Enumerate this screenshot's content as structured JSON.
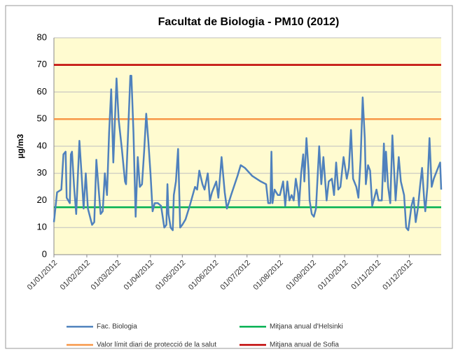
{
  "chart_data": {
    "type": "line",
    "title": "Facultat de Biologia - PM10 (2012)",
    "y_label": "µg/m3",
    "xlim": [
      "01/01/2012",
      "31/12/2012"
    ],
    "xticks": [
      "01/01/2012",
      "01/02/2012",
      "01/03/2012",
      "01/04/2012",
      "01/05/2012",
      "01/06/2012",
      "01/07/2012",
      "01/08/2012",
      "01/09/2012",
      "01/10/2012",
      "01/11/2012",
      "01/12/2012"
    ],
    "ylim": [
      0,
      80
    ],
    "yticks": [
      0,
      10,
      20,
      30,
      40,
      50,
      60,
      70,
      80
    ],
    "grid": true,
    "x": [
      "01/01/2012",
      "04/01/2012",
      "08/01/2012",
      "10/01/2012",
      "12/01/2012",
      "13/01/2012",
      "16/01/2012",
      "17/01/2012",
      "18/01/2012",
      "20/01/2012",
      "22/01/2012",
      "25/01/2012",
      "27/01/2012",
      "29/01/2012",
      "31/01/2012",
      "02/02/2012",
      "06/02/2012",
      "08/02/2012",
      "10/02/2012",
      "12/02/2012",
      "14/02/2012",
      "16/02/2012",
      "18/02/2012",
      "20/02/2012",
      "22/02/2012",
      "24/02/2012",
      "26/02/2012",
      "29/02/2012",
      "02/03/2012",
      "05/03/2012",
      "08/03/2012",
      "09/03/2012",
      "12/03/2012",
      "13/03/2012",
      "14/03/2012",
      "16/03/2012",
      "18/03/2012",
      "20/03/2012",
      "22/03/2012",
      "24/03/2012",
      "26/03/2012",
      "28/03/2012",
      "30/03/2012",
      "01/04/2012",
      "03/04/2012",
      "05/04/2012",
      "08/04/2012",
      "11/04/2012",
      "14/04/2012",
      "16/04/2012",
      "17/04/2012",
      "18/04/2012",
      "20/04/2012",
      "22/04/2012",
      "23/04/2012",
      "25/04/2012",
      "27/04/2012",
      "29/04/2012",
      "01/05/2012",
      "04/05/2012",
      "08/05/2012",
      "13/05/2012",
      "15/05/2012",
      "17/05/2012",
      "20/05/2012",
      "22/05/2012",
      "25/05/2012",
      "27/05/2012",
      "29/05/2012",
      "02/06/2012",
      "04/06/2012",
      "07/06/2012",
      "10/06/2012",
      "12/06/2012",
      "16/06/2012",
      "22/06/2012",
      "25/06/2012",
      "29/06/2012",
      "06/07/2012",
      "14/07/2012",
      "19/07/2012",
      "21/07/2012",
      "23/07/2012",
      "24/07/2012",
      "25/07/2012",
      "27/07/2012",
      "30/07/2012",
      "01/08/2012",
      "04/08/2012",
      "06/08/2012",
      "08/08/2012",
      "10/08/2012",
      "12/08/2012",
      "14/08/2012",
      "16/08/2012",
      "18/08/2012",
      "19/08/2012",
      "21/08/2012",
      "23/08/2012",
      "24/08/2012",
      "26/08/2012",
      "28/08/2012",
      "29/08/2012",
      "31/08/2012",
      "02/09/2012",
      "04/09/2012",
      "07/09/2012",
      "09/09/2012",
      "11/09/2012",
      "14/09/2012",
      "16/09/2012",
      "19/09/2012",
      "21/09/2012",
      "23/09/2012",
      "25/09/2012",
      "27/09/2012",
      "30/09/2012",
      "03/10/2012",
      "05/10/2012",
      "07/10/2012",
      "09/10/2012",
      "12/10/2012",
      "14/10/2012",
      "16/10/2012",
      "18/10/2012",
      "20/10/2012",
      "21/10/2012",
      "23/10/2012",
      "25/10/2012",
      "27/10/2012",
      "29/10/2012",
      "31/10/2012",
      "02/11/2012",
      "05/11/2012",
      "07/11/2012",
      "08/11/2012",
      "09/11/2012",
      "11/11/2012",
      "13/11/2012",
      "15/11/2012",
      "18/11/2012",
      "21/11/2012",
      "23/11/2012",
      "26/11/2012",
      "28/11/2012",
      "30/11/2012",
      "03/12/2012",
      "05/12/2012",
      "07/12/2012",
      "09/12/2012",
      "11/12/2012",
      "13/12/2012",
      "15/12/2012",
      "16/12/2012",
      "18/12/2012",
      "20/12/2012",
      "22/12/2012",
      "24/12/2012",
      "27/12/2012",
      "30/12/2012",
      "31/12/2012"
    ],
    "series": [
      {
        "name": "Fac. Biologia",
        "color": "#4f81bd",
        "values": [
          12,
          23,
          24,
          37,
          38,
          21,
          19,
          37,
          38,
          25,
          15,
          42,
          30,
          17,
          30,
          17,
          11,
          12,
          35,
          25,
          15,
          16,
          30,
          22,
          45,
          61,
          34,
          65,
          50,
          39,
          27,
          26,
          56,
          66,
          66,
          45,
          14,
          36,
          25,
          26,
          38,
          52,
          42,
          30,
          16,
          19,
          19,
          18,
          10,
          11,
          26,
          15,
          10,
          9,
          22,
          27,
          39,
          10,
          11,
          13,
          18,
          25,
          24,
          31,
          26,
          24,
          30,
          20,
          23,
          27,
          21,
          36,
          23,
          17,
          22,
          29,
          33,
          32,
          29,
          27,
          26,
          19,
          19,
          38,
          19,
          24,
          22,
          22,
          27,
          18,
          27,
          20,
          22,
          20,
          28,
          23,
          18,
          30,
          37,
          27,
          43,
          31,
          20,
          15,
          14,
          17,
          40,
          26,
          36,
          20,
          27,
          28,
          22,
          34,
          24,
          25,
          36,
          28,
          32,
          46,
          28,
          25,
          21,
          35,
          58,
          43,
          26,
          33,
          31,
          18,
          21,
          24,
          20,
          20,
          41,
          27,
          38,
          25,
          19,
          44,
          20,
          36,
          27,
          22,
          10,
          9,
          18,
          21,
          12,
          17,
          25,
          32,
          20,
          16,
          25,
          43,
          25,
          28,
          31,
          34,
          24
        ]
      }
    ],
    "reference_lines": [
      {
        "name": "Mitjana anual d'Helsinki",
        "color": "#00b050",
        "value": 17.5
      },
      {
        "name": "Valor límit diari de protecció de la salut",
        "color": "#f79646",
        "value": 50
      },
      {
        "name": "Mitjana anual de Sofia",
        "color": "#c00000",
        "value": 70
      }
    ]
  }
}
